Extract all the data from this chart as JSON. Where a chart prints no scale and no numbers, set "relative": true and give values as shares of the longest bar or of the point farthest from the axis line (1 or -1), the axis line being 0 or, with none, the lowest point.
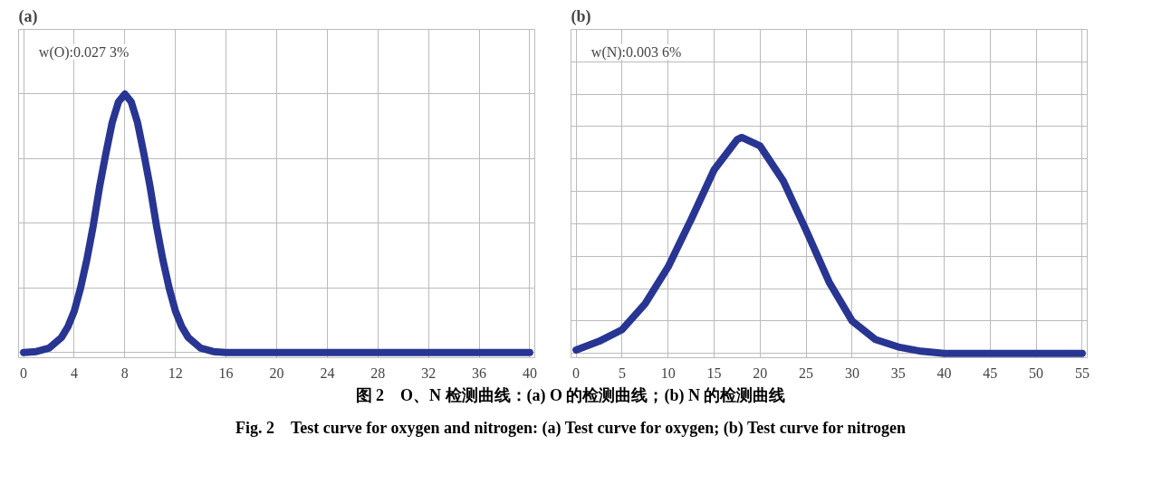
{
  "chart_data": [
    {
      "type": "line",
      "title": "(a)",
      "relative": true,
      "grid": true,
      "tick_labels": "x",
      "xlim": [
        0,
        40
      ],
      "xticks": [
        0,
        4,
        8,
        12,
        16,
        20,
        24,
        28,
        32,
        36,
        40
      ],
      "x": [
        0,
        1,
        2,
        3,
        3.5,
        4,
        4.5,
        5,
        5.5,
        6,
        6.5,
        7,
        7.5,
        8,
        8.5,
        9,
        9.5,
        10,
        10.5,
        11,
        11.5,
        12,
        12.5,
        13,
        14,
        15,
        16,
        20,
        25,
        30,
        35,
        40
      ],
      "series": [
        {
          "color": "#283593",
          "values": [
            0,
            0.004,
            0.017,
            0.059,
            0.1,
            0.16,
            0.25,
            0.36,
            0.49,
            0.64,
            0.77,
            0.89,
            0.97,
            1,
            0.97,
            0.89,
            0.77,
            0.64,
            0.49,
            0.36,
            0.25,
            0.16,
            0.1,
            0.059,
            0.017,
            0.004,
            0,
            0,
            0,
            0,
            0,
            0
          ]
        }
      ],
      "annotations": [
        "w(O):0.027 3%"
      ]
    },
    {
      "type": "line",
      "title": "(b)",
      "relative": true,
      "grid": true,
      "tick_labels": "x",
      "xlim": [
        0,
        55
      ],
      "xticks": [
        0,
        5,
        10,
        15,
        20,
        25,
        30,
        35,
        40,
        45,
        50,
        55
      ],
      "x": [
        0,
        2.5,
        5,
        7.5,
        10,
        12.5,
        15,
        17.5,
        18,
        20,
        22.5,
        25,
        27.5,
        30,
        32.5,
        35,
        37.5,
        40,
        45,
        50,
        55
      ],
      "series": [
        {
          "color": "#283593",
          "values": [
            0.016,
            0.056,
            0.11,
            0.23,
            0.4,
            0.62,
            0.85,
            0.99,
            1,
            0.96,
            0.8,
            0.57,
            0.33,
            0.15,
            0.065,
            0.03,
            0.01,
            0,
            0,
            0,
            0
          ]
        }
      ],
      "annotations": [
        "w(N):0.003 6%",
        "图 2　O、N 检测曲线：(a) O 的检测曲线；(b) N 的检测曲线",
        "Fig. 2　Test curve for oxygen and nitrogen: (a) Test curve for oxygen; (b) Test curve for nitrogen"
      ]
    }
  ]
}
